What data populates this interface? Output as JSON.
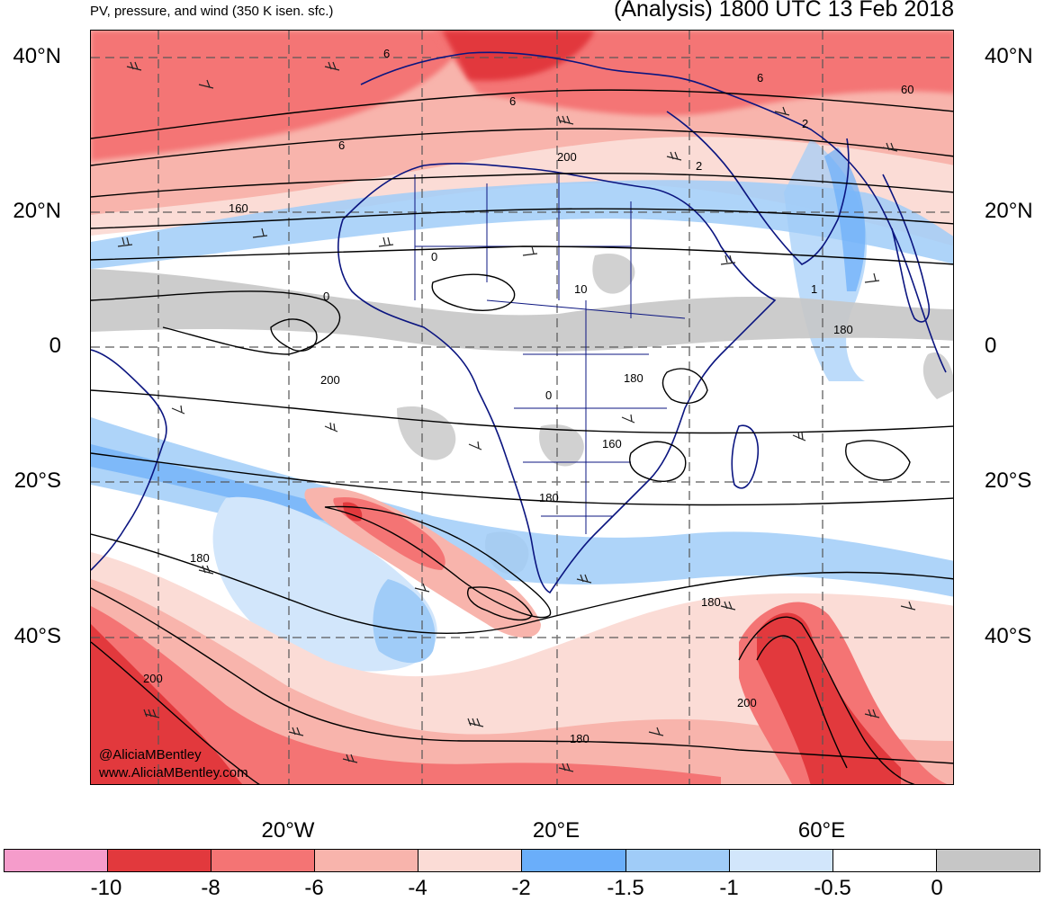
{
  "header": {
    "subtitle": "PV, pressure, and wind (350 K isen. sfc.)",
    "title": "(Analysis) 1800 UTC 13 Feb 2018"
  },
  "axes": {
    "lat_labels": [
      "40°N",
      "20°N",
      "0",
      "20°S",
      "40°S"
    ],
    "lon_labels": [
      "20°W",
      "20°E",
      "60°E"
    ]
  },
  "contour_labels": [
    "6",
    "6",
    "6",
    "6",
    "60",
    "2",
    "2",
    "200",
    "160",
    "0",
    "0",
    "10",
    "1",
    "180",
    "200",
    "180",
    "0",
    "160",
    "180",
    "180",
    "180",
    "200",
    "200",
    "180"
  ],
  "credit": {
    "handle": "@AliciaMBentley",
    "website": "www.AliciaMBentley.com"
  },
  "colorbar": {
    "colors": [
      "#f59ccb",
      "#e2393d",
      "#f47474",
      "#f8b4ac",
      "#fbdcd6",
      "#6aaefa",
      "#a0ccf8",
      "#d2e6fb",
      "#ffffff",
      "#c6c6c6"
    ],
    "labels": [
      "-10",
      "-8",
      "-6",
      "-4",
      "-2",
      "-1.5",
      "-1",
      "-0.5",
      "0"
    ]
  },
  "palette": {
    "land_border": "#0b1580",
    "contour": "#000000",
    "grid": "#555555"
  }
}
